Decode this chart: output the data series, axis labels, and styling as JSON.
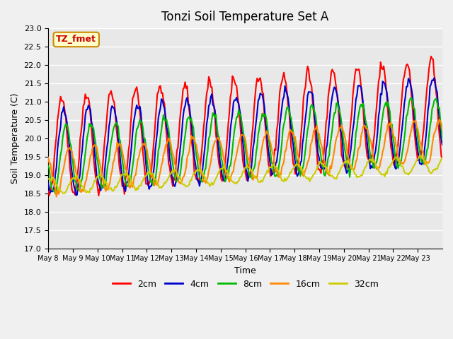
{
  "title": "Tonzi Soil Temperature Set A",
  "xlabel": "Time",
  "ylabel": "Soil Temperature (C)",
  "ylim": [
    17.0,
    23.0
  ],
  "yticks": [
    17.0,
    17.5,
    18.0,
    18.5,
    19.0,
    19.5,
    20.0,
    20.5,
    21.0,
    21.5,
    22.0,
    22.5,
    23.0
  ],
  "legend_labels": [
    "2cm",
    "4cm",
    "8cm",
    "16cm",
    "32cm"
  ],
  "legend_colors": [
    "#ff0000",
    "#0000cc",
    "#00bb00",
    "#ff8800",
    "#cccc00"
  ],
  "annotation_text": "TZ_fmet",
  "annotation_bg": "#ffffcc",
  "annotation_border": "#cc8800",
  "bg_color": "#e8e8e8",
  "grid_color": "#ffffff",
  "line_width": 1.5,
  "x_tick_labels": [
    "May 8",
    "May 9",
    "May 10",
    "May 11",
    "May 12",
    "May 13",
    "May 14",
    "May 15",
    "May 16",
    "May 17",
    "May 18",
    "May 19",
    "May 20",
    "May 21",
    "May 22",
    "May 23"
  ],
  "n_days": 16,
  "samples_per_day": 24
}
